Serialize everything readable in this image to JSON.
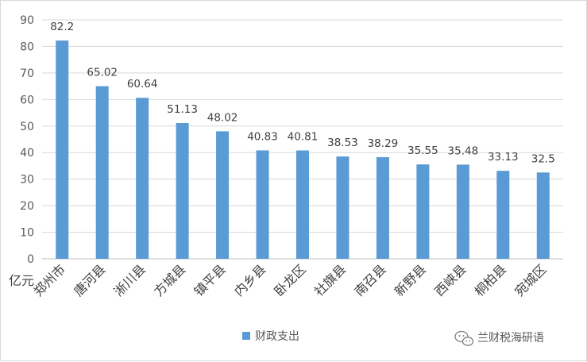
{
  "chart_data": {
    "type": "bar",
    "unit_label": "亿元",
    "categories": [
      "郑州市",
      "唐河县",
      "淅川县",
      "方城县",
      "镇平县",
      "内乡县",
      "卧龙区",
      "社旗县",
      "南召县",
      "新野县",
      "西峡县",
      "桐柏县",
      "宛城区"
    ],
    "series": [
      {
        "name": "财政支出",
        "color": "#5B9BD5",
        "values": [
          82.2,
          65.02,
          60.64,
          51.13,
          48.02,
          40.83,
          40.81,
          38.53,
          38.29,
          35.55,
          35.48,
          33.13,
          32.5
        ],
        "data_labels": [
          "82.2",
          "65.02",
          "60.64",
          "51.13",
          "48.02",
          "40.83",
          "40.81",
          "38.53",
          "38.29",
          "35.55",
          "35.48",
          "33.13",
          "32.5"
        ]
      }
    ],
    "ylim": [
      0,
      90
    ],
    "yticks": [
      0,
      10,
      20,
      30,
      40,
      50,
      60,
      70,
      80,
      90
    ],
    "grid": true,
    "legend_position": "bottom"
  },
  "watermark": {
    "text": "兰财税海研语",
    "icon": "wechat-icon"
  }
}
